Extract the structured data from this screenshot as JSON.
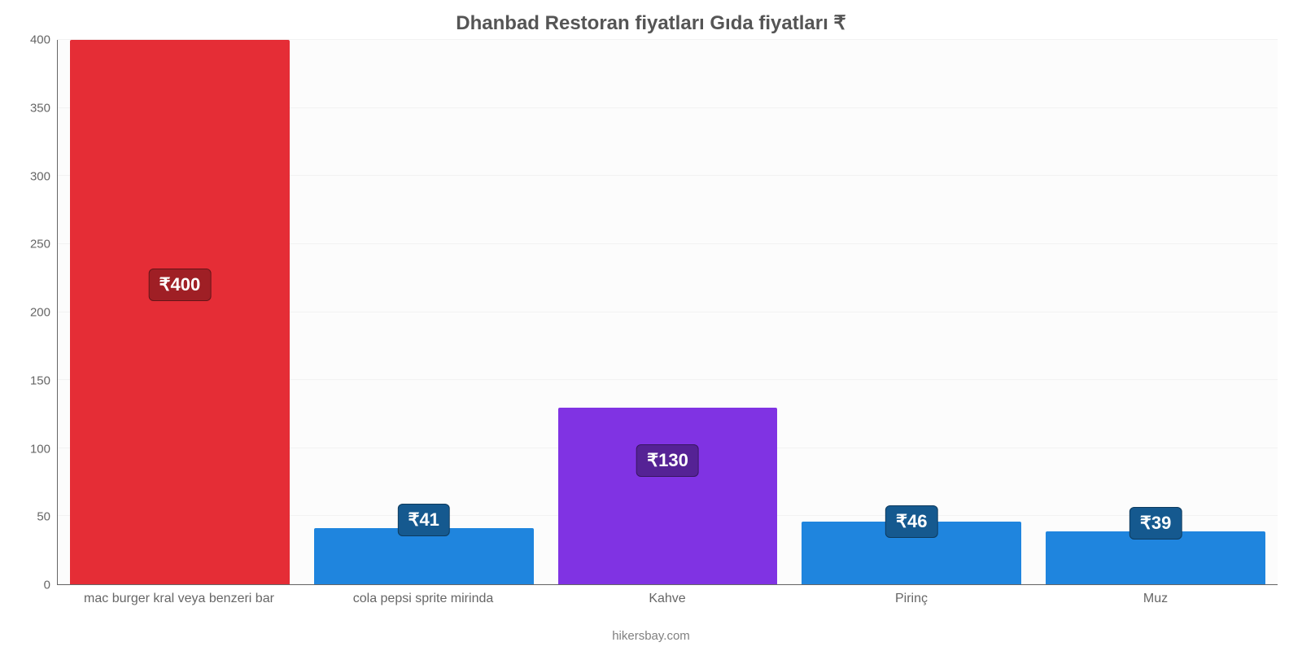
{
  "chart": {
    "type": "bar",
    "title": "Dhanbad Restoran fiyatları Gıda fiyatları ₹",
    "title_fontsize": 24,
    "title_color": "#555555",
    "attribution": "hikersbay.com",
    "attribution_color": "#808080",
    "background_color": "#ffffff",
    "plot_background_color": "#fcfcfc",
    "gridline_color": "#f2f2f2",
    "axis_line_color": "#666666",
    "ylim": [
      0,
      400
    ],
    "ytick_step": 50,
    "yticks": [
      0,
      50,
      100,
      150,
      200,
      250,
      300,
      350,
      400
    ],
    "ytick_fontsize": 15,
    "ytick_color": "#666666",
    "xtick_fontsize": 16,
    "xtick_color": "#666666",
    "bar_width_pct": 90,
    "currency_symbol": "₹",
    "label_text_color": "#ffffff",
    "label_fontsize": 22,
    "label_border_radius": 6,
    "categories": [
      "mac burger kral veya benzeri bar",
      "cola pepsi sprite mirinda",
      "Kahve",
      "Pirinç",
      "Muz"
    ],
    "values": [
      400,
      41,
      130,
      46,
      39
    ],
    "value_labels": [
      "₹400",
      "₹41",
      "₹130",
      "₹46",
      "₹39"
    ],
    "bar_colors": [
      "#e52d36",
      "#1f85de",
      "#8033e3",
      "#1f85de",
      "#1f85de"
    ],
    "label_bg_colors": [
      "#9f1f25",
      "#15598f",
      "#552295",
      "#15598f",
      "#15598f"
    ],
    "label_positions_pct": [
      55,
      115,
      70,
      100,
      115
    ]
  }
}
